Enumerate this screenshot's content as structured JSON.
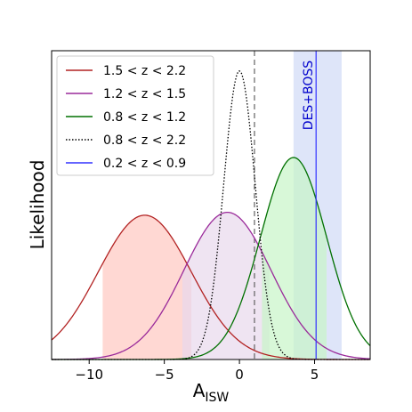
{
  "chart_data": {
    "type": "line",
    "title": "",
    "xlabel": "A",
    "xlabel_subscript": "ISW",
    "ylabel": "Likelihood",
    "xlim": [
      -12.5,
      8.7
    ],
    "ylim": [
      0,
      1.07
    ],
    "xticks": [
      -10,
      -5,
      0,
      5
    ],
    "xtick_labels": [
      "−10",
      "−5",
      "0",
      "5"
    ],
    "yticks": [],
    "grid": false,
    "legend_position": "top-left",
    "series": [
      {
        "name": "1.5 < z < 2.2",
        "kind": "gaussian",
        "mean": -6.3,
        "sigma": 3.1,
        "amplitude": 0.5,
        "color": "#b22222",
        "fill_color": "#ffc8c0",
        "fill_range": [
          -9.1,
          -3.2
        ],
        "linestyle": "solid"
      },
      {
        "name": "1.2 < z < 1.5",
        "kind": "gaussian",
        "mean": -0.8,
        "sigma": 2.9,
        "amplitude": 0.51,
        "color": "#9a2a9a",
        "fill_color": "#e8d8ec",
        "fill_range": [
          -3.8,
          2.0
        ],
        "linestyle": "solid"
      },
      {
        "name": "0.8 < z < 1.2",
        "kind": "gaussian",
        "mean": 3.6,
        "sigma": 2.2,
        "amplitude": 0.7,
        "color": "#007000",
        "fill_color": "#c8f5c8",
        "fill_range": [
          1.5,
          5.8
        ],
        "linestyle": "solid"
      },
      {
        "name": "0.8 < z < 2.2",
        "kind": "gaussian",
        "mean": 0.0,
        "sigma": 1.05,
        "amplitude": 1.0,
        "color": "#000000",
        "linestyle": "dotted"
      },
      {
        "name": "0.2 < z < 0.9",
        "kind": "vertical_band",
        "center": 5.1,
        "band": [
          3.6,
          6.8
        ],
        "color": "#3232ff",
        "fill_color": "#c8d4f5",
        "linestyle": "solid"
      }
    ],
    "reference_line": {
      "x": 1.0,
      "color": "#555555",
      "linestyle": "dashed"
    },
    "annotations": [
      {
        "text": "DES+BOSS",
        "x": 5.1,
        "color": "#0000cc",
        "rotation": -90
      }
    ]
  }
}
